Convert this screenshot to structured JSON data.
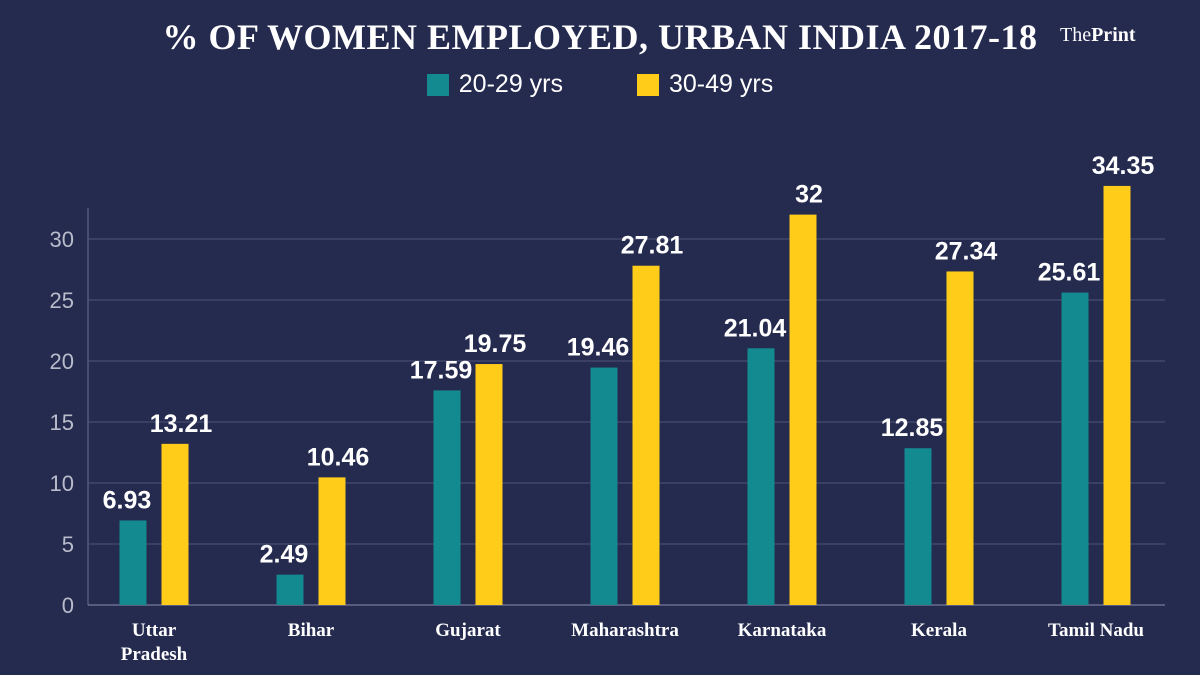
{
  "brand": {
    "prefix": "The",
    "name": "Print"
  },
  "chart_data": {
    "type": "bar",
    "title": "% OF WOMEN EMPLOYED, URBAN INDIA 2017-18",
    "categories": [
      [
        "Uttar",
        "Pradesh"
      ],
      [
        "Bihar"
      ],
      [
        "Gujarat"
      ],
      [
        "Maharashtra"
      ],
      [
        "Karnataka"
      ],
      [
        "Kerala"
      ],
      [
        "Tamil Nadu"
      ]
    ],
    "series": [
      {
        "name": "20-29 yrs",
        "color": "#138a8f",
        "values": [
          6.93,
          2.49,
          17.59,
          19.46,
          21.04,
          12.85,
          25.61
        ]
      },
      {
        "name": "30-49 yrs",
        "color": "#ffcc1a",
        "values": [
          13.21,
          10.46,
          19.75,
          27.81,
          32,
          27.34,
          34.35
        ]
      }
    ],
    "yticks": [
      0,
      5,
      10,
      15,
      20,
      25,
      30
    ],
    "ylim": [
      0,
      33
    ],
    "grid": true,
    "legend_position": "top-center",
    "xlabel": "",
    "ylabel": ""
  }
}
